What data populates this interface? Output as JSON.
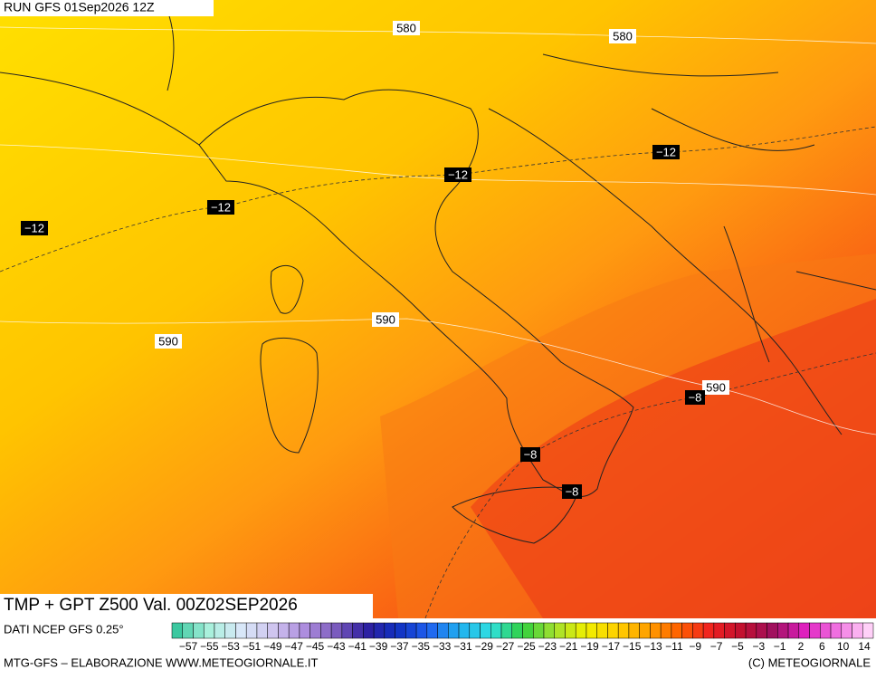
{
  "header": {
    "run": "RUN GFS 01Sep2026 12Z"
  },
  "map": {
    "labels": [
      "580",
      "580",
      "−12",
      "−12",
      "−12",
      "−12",
      "590",
      "590",
      "590",
      "−8",
      "−8",
      "−8"
    ]
  },
  "title": "TMP + GPT Z500 Val. 00Z02SEP2026",
  "legend": {
    "source": "DATI NCEP GFS 0.25°",
    "labels": [
      "−57",
      "−55",
      "−53",
      "−51",
      "−49",
      "−47",
      "−45",
      "−43",
      "−41",
      "−39",
      "−37",
      "−35",
      "−33",
      "−31",
      "−29",
      "−27",
      "−25",
      "−23",
      "−21",
      "−19",
      "−17",
      "−15",
      "−13",
      "−11",
      "−9",
      "−7",
      "−5",
      "−3",
      "−1",
      "2",
      "6",
      "10",
      "14"
    ]
  },
  "footer": {
    "left": "MTG-GFS – ELABORAZIONE WWW.METEOGIORNALE.IT",
    "right": "(C) METEOGIORNALE"
  }
}
